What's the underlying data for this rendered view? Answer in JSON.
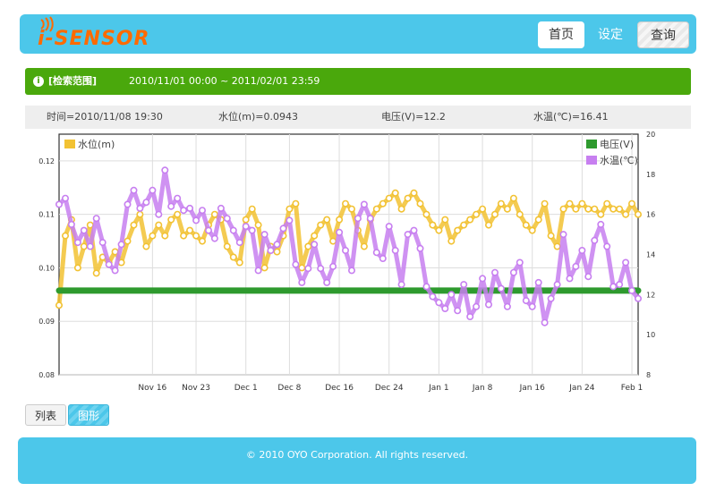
{
  "header": {
    "logo_text": "i-SENSOR",
    "nav": {
      "home": "首页",
      "settings": "设定",
      "query": "查询"
    },
    "brand_color": "#4cc7ea",
    "logo_color": "#ff6a00"
  },
  "search_range": {
    "label": "[检索范围]",
    "value": "2010/11/01 00:00 ~ 2011/02/01 23:59",
    "color": "#4aa80c"
  },
  "readout": {
    "time": "时间=2010/11/08 19:30",
    "level": "水位(m)=0.0943",
    "voltage": "电压(V)=12.2",
    "temp": "水温(℃)=16.41"
  },
  "tabs": {
    "list": "列表",
    "chart": "图形"
  },
  "footer": {
    "copyright": "© 2010 OYO Corporation. All rights reserved."
  },
  "chart_data": {
    "type": "line",
    "x_ticks": [
      "Nov 16",
      "Nov 23",
      "Dec 1",
      "Dec 8",
      "Dec 16",
      "Dec 24",
      "Jan 1",
      "Jan 8",
      "Jan 16",
      "Jan 24",
      "Feb 1"
    ],
    "x_tick_days": [
      15,
      22,
      30,
      37,
      45,
      53,
      61,
      68,
      76,
      84,
      92
    ],
    "x_range_days": [
      0,
      93
    ],
    "y_left": {
      "ticks": [
        "0.08",
        "0.09",
        "0.10",
        "0.11",
        "0.12"
      ],
      "range": [
        0.08,
        0.125
      ]
    },
    "y_right": {
      "ticks": [
        "8",
        "10",
        "12",
        "14",
        "16",
        "18",
        "20"
      ],
      "range": [
        8,
        20
      ]
    },
    "legend_left": [
      "水位(m)"
    ],
    "legend_right": [
      "电压(V)",
      "水温(℃)"
    ],
    "series": [
      {
        "name": "水位(m)",
        "axis": "left",
        "color": "#f2c233",
        "x": [
          0,
          1,
          2,
          3,
          4,
          5,
          6,
          7,
          8,
          9,
          10,
          11,
          12,
          13,
          14,
          15,
          16,
          17,
          18,
          19,
          20,
          21,
          22,
          23,
          24,
          25,
          26,
          27,
          28,
          29,
          30,
          31,
          32,
          33,
          34,
          35,
          36,
          37,
          38,
          39,
          40,
          41,
          42,
          43,
          44,
          45,
          46,
          47,
          48,
          49,
          50,
          51,
          52,
          53,
          54,
          55,
          56,
          57,
          58,
          59,
          60,
          61,
          62,
          63,
          64,
          65,
          66,
          67,
          68,
          69,
          70,
          71,
          72,
          73,
          74,
          75,
          76,
          77,
          78,
          79,
          80,
          81,
          82,
          83,
          84,
          85,
          86,
          87,
          88,
          89,
          90,
          91,
          92,
          93
        ],
        "y": [
          0.093,
          0.106,
          0.109,
          0.1,
          0.104,
          0.108,
          0.099,
          0.102,
          0.101,
          0.103,
          0.101,
          0.105,
          0.108,
          0.11,
          0.104,
          0.106,
          0.108,
          0.106,
          0.109,
          0.11,
          0.106,
          0.107,
          0.106,
          0.105,
          0.108,
          0.11,
          0.109,
          0.104,
          0.102,
          0.101,
          0.109,
          0.111,
          0.108,
          0.1,
          0.104,
          0.103,
          0.106,
          0.111,
          0.112,
          0.1,
          0.104,
          0.106,
          0.108,
          0.109,
          0.105,
          0.109,
          0.112,
          0.111,
          0.107,
          0.104,
          0.109,
          0.111,
          0.112,
          0.113,
          0.114,
          0.111,
          0.113,
          0.114,
          0.112,
          0.11,
          0.108,
          0.107,
          0.109,
          0.105,
          0.107,
          0.108,
          0.109,
          0.11,
          0.111,
          0.108,
          0.11,
          0.112,
          0.111,
          0.113,
          0.11,
          0.108,
          0.107,
          0.109,
          0.112,
          0.106,
          0.104,
          0.111,
          0.112,
          0.111,
          0.112,
          0.111,
          0.111,
          0.11,
          0.112,
          0.111,
          0.111,
          0.11,
          0.112,
          0.11
        ]
      },
      {
        "name": "电压(V)",
        "axis": "right",
        "color": "#2e9a2e",
        "x": [
          0,
          93
        ],
        "y": [
          12.2,
          12.2
        ]
      },
      {
        "name": "水温(℃)",
        "axis": "right",
        "color": "#c77ff0",
        "x": [
          0,
          1,
          2,
          3,
          4,
          5,
          6,
          7,
          8,
          9,
          10,
          11,
          12,
          13,
          14,
          15,
          16,
          17,
          18,
          19,
          20,
          21,
          22,
          23,
          24,
          25,
          26,
          27,
          28,
          29,
          30,
          31,
          32,
          33,
          34,
          35,
          36,
          37,
          38,
          39,
          40,
          41,
          42,
          43,
          44,
          45,
          46,
          47,
          48,
          49,
          50,
          51,
          52,
          53,
          54,
          55,
          56,
          57,
          58,
          59,
          60,
          61,
          62,
          63,
          64,
          65,
          66,
          67,
          68,
          69,
          70,
          71,
          72,
          73,
          74,
          75,
          76,
          77,
          78,
          79,
          80,
          81,
          82,
          83,
          84,
          85,
          86,
          87,
          88,
          89,
          90,
          91,
          92,
          93
        ],
        "y": [
          16.5,
          16.8,
          15.5,
          14.6,
          15.2,
          14.4,
          15.8,
          14.6,
          13.5,
          13.2,
          14.5,
          16.5,
          17.2,
          16.3,
          16.6,
          17.2,
          16.0,
          18.2,
          16.4,
          16.8,
          16.2,
          16.3,
          15.7,
          16.2,
          15.2,
          14.8,
          16.3,
          15.8,
          15.2,
          14.6,
          15.4,
          15.2,
          13.2,
          15.0,
          14.2,
          14.5,
          15.3,
          15.7,
          13.5,
          12.6,
          13.3,
          14.5,
          13.3,
          12.6,
          13.4,
          15.1,
          14.2,
          13.2,
          15.8,
          16.5,
          15.8,
          14.1,
          13.8,
          15.4,
          14.2,
          12.5,
          15.0,
          15.2,
          14.3,
          12.4,
          11.9,
          11.6,
          11.3,
          12.0,
          11.2,
          12.5,
          10.9,
          11.4,
          12.8,
          11.5,
          13.1,
          12.3,
          11.4,
          13.1,
          13.6,
          11.7,
          11.4,
          12.6,
          10.6,
          11.8,
          12.5,
          15.0,
          12.8,
          13.4,
          14.2,
          12.9,
          14.7,
          15.5,
          14.4,
          12.4,
          12.5,
          13.6,
          12.2,
          11.8
        ]
      }
    ],
    "grid": true
  }
}
